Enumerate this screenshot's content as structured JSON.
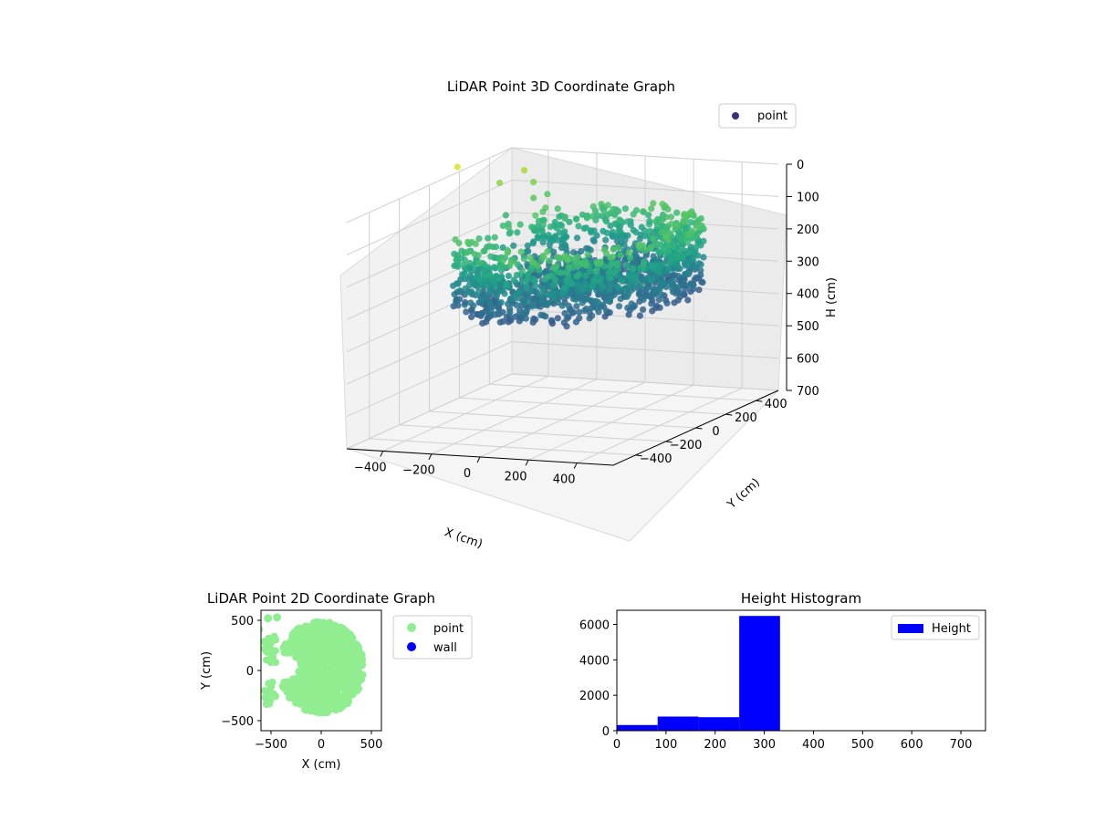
{
  "chart_data": [
    {
      "type": "scatter",
      "subtype": "3d",
      "title": "LiDAR Point 3D Coordinate Graph",
      "xlabel": "X (cm)",
      "ylabel": "Y (cm)",
      "zlabel": "H (cm)",
      "xlim": [
        -550,
        550
      ],
      "ylim": [
        -550,
        550
      ],
      "zlim": [
        0,
        750
      ],
      "z_inverted": true,
      "x_ticks": [
        "−400",
        "−200",
        "0",
        "200",
        "400"
      ],
      "y_ticks": [
        "−400",
        "−200",
        "0",
        "200",
        "400"
      ],
      "z_ticks": [
        "0",
        "100",
        "200",
        "300",
        "400",
        "500",
        "600",
        "700"
      ],
      "colormap": "viridis",
      "legend": [
        "point"
      ],
      "legend_position": "upper right",
      "grid": true,
      "series": [
        {
          "name": "point",
          "color": "#3b2e7e",
          "shape": "ring",
          "x_range": [
            -450,
            420
          ],
          "y_range": [
            -450,
            500
          ],
          "h_range": [
            100,
            330
          ]
        }
      ]
    },
    {
      "type": "scatter",
      "title": "LiDAR Point 2D Coordinate Graph",
      "xlabel": "X (cm)",
      "ylabel": "Y (cm)",
      "xlim": [
        -600,
        600
      ],
      "ylim": [
        -600,
        600
      ],
      "x_ticks": [
        "−500",
        "0",
        "500"
      ],
      "y_ticks": [
        "−500",
        "0",
        "500"
      ],
      "legend": [
        "point",
        "wall"
      ],
      "legend_position": "outside right",
      "series": [
        {
          "name": "point",
          "color": "#90ee90",
          "outlier_points": [
            [
              -620,
              410
            ],
            [
              -530,
              520
            ],
            [
              -440,
              530
            ]
          ]
        },
        {
          "name": "wall",
          "color": "#0000ff",
          "points": []
        }
      ]
    },
    {
      "type": "bar",
      "subtype": "histogram",
      "title": "Height Histogram",
      "xlim": [
        0,
        750
      ],
      "ylim": [
        0,
        6800
      ],
      "x_ticks": [
        "0",
        "100",
        "200",
        "300",
        "400",
        "500",
        "600",
        "700"
      ],
      "y_ticks": [
        "0",
        "2000",
        "4000",
        "6000"
      ],
      "legend": [
        "Height"
      ],
      "legend_position": "upper right",
      "series": [
        {
          "name": "Height",
          "color": "#0000ff",
          "bin_edges": [
            0,
            83,
            166,
            249,
            332,
            415,
            498,
            581,
            664,
            747
          ],
          "values": [
            320,
            800,
            760,
            6480,
            5,
            0,
            0,
            0,
            3
          ]
        }
      ]
    }
  ]
}
